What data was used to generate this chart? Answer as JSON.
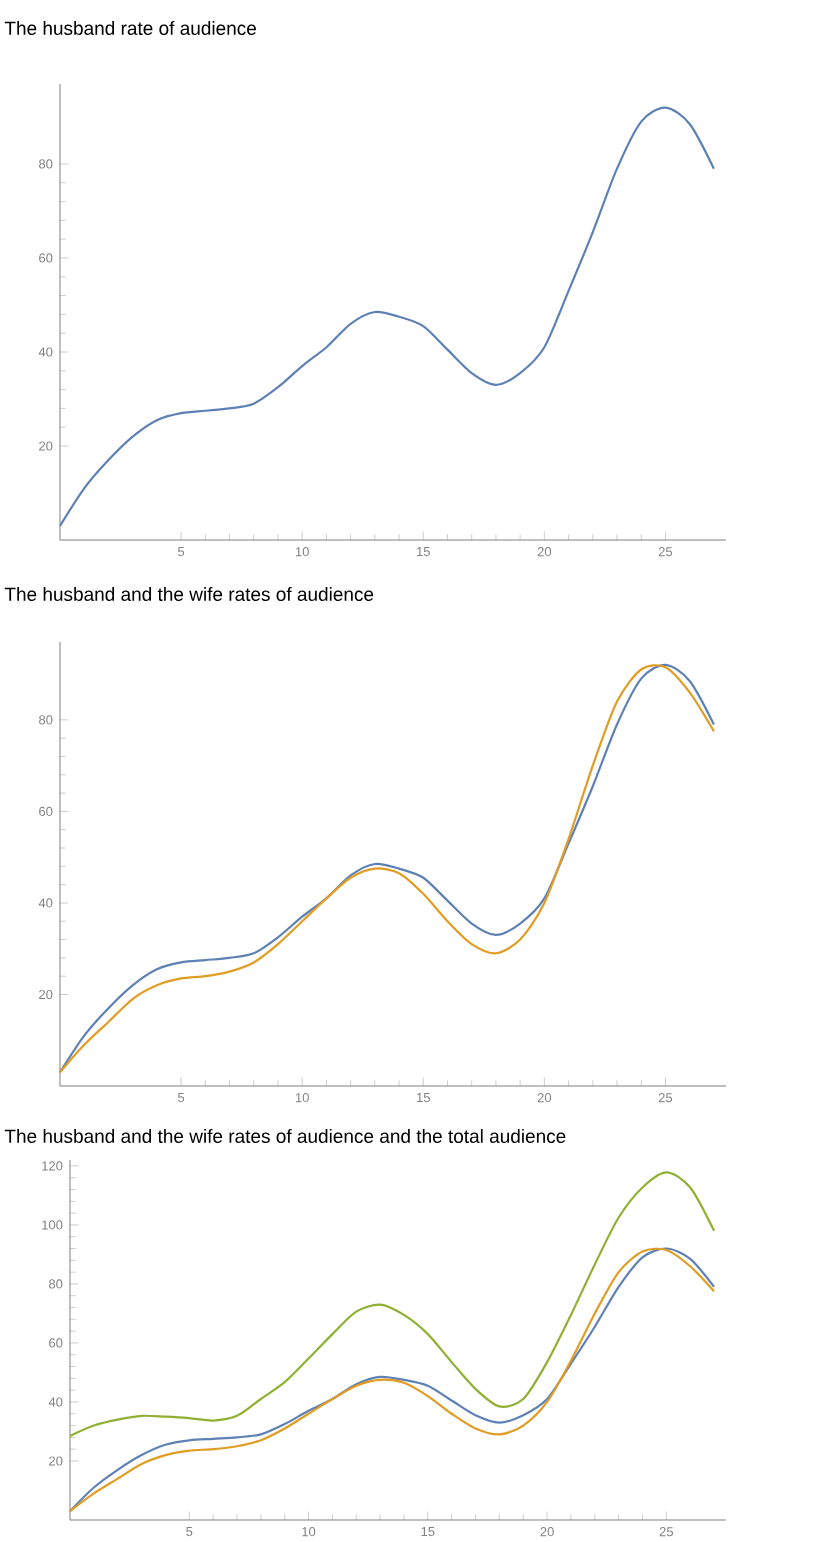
{
  "chart_data": [
    {
      "type": "line",
      "title": "The husband rate of audience",
      "x": [
        0,
        1,
        2,
        3,
        4,
        5,
        6,
        7,
        8,
        9,
        10,
        11,
        12,
        13,
        14,
        15,
        16,
        17,
        18,
        19,
        20,
        21,
        22,
        23,
        24,
        25,
        26,
        27
      ],
      "xlim": [
        0,
        27.5
      ],
      "ylim": [
        0,
        97
      ],
      "xticks": [
        5,
        10,
        15,
        20,
        25
      ],
      "yticks": [
        20,
        40,
        60,
        80
      ],
      "series": [
        {
          "color": "#5e81b5",
          "values": [
            3,
            11,
            17,
            22,
            25.5,
            27,
            27.5,
            28,
            29,
            32.5,
            37,
            41,
            46,
            48.5,
            47.5,
            45.5,
            40.5,
            35.5,
            33,
            35.5,
            41,
            53,
            65.5,
            79,
            89,
            92,
            88.5,
            79
          ]
        }
      ]
    },
    {
      "type": "line",
      "title": "The husband and the wife rates of audience",
      "x": [
        0,
        1,
        2,
        3,
        4,
        5,
        6,
        7,
        8,
        9,
        10,
        11,
        12,
        13,
        14,
        15,
        16,
        17,
        18,
        19,
        20,
        21,
        22,
        23,
        24,
        25,
        26,
        27
      ],
      "xlim": [
        0,
        27.5
      ],
      "ylim": [
        0,
        97
      ],
      "xticks": [
        5,
        10,
        15,
        20,
        25
      ],
      "yticks": [
        20,
        40,
        60,
        80
      ],
      "series": [
        {
          "color": "#5e81b5",
          "values": [
            3,
            11,
            17,
            22,
            25.5,
            27,
            27.5,
            28,
            29,
            32.5,
            37,
            41,
            46,
            48.5,
            47.5,
            45.5,
            40.5,
            35.5,
            33,
            35.5,
            41,
            53,
            65.5,
            79,
            89,
            92,
            88.5,
            79
          ]
        },
        {
          "color": "#e19c24",
          "values": [
            3,
            9,
            14,
            19,
            22,
            23.5,
            24,
            25,
            27,
            31,
            36,
            41,
            45.5,
            47.5,
            46.5,
            42,
            36,
            31,
            29,
            32,
            40,
            54,
            70,
            84,
            91,
            91.5,
            86,
            77.5
          ]
        }
      ]
    },
    {
      "type": "line",
      "title": "The husband and the wife rates of audience and the total audience",
      "x": [
        0,
        1,
        2,
        3,
        4,
        5,
        6,
        7,
        8,
        9,
        10,
        11,
        12,
        13,
        14,
        15,
        16,
        17,
        18,
        19,
        20,
        21,
        22,
        23,
        24,
        25,
        26,
        27
      ],
      "xlim": [
        0,
        27.5
      ],
      "ylim": [
        0,
        122
      ],
      "xticks": [
        5,
        10,
        15,
        20,
        25
      ],
      "yticks": [
        20,
        40,
        60,
        80,
        100,
        120
      ],
      "series": [
        {
          "color": "#5e81b5",
          "values": [
            3,
            11,
            17,
            22,
            25.5,
            27,
            27.5,
            28,
            29,
            32.5,
            37,
            41,
            46,
            48.5,
            47.5,
            45.5,
            40.5,
            35.5,
            33,
            35.5,
            41,
            53,
            65.5,
            79,
            89,
            92,
            88.5,
            79
          ]
        },
        {
          "color": "#e19c24",
          "values": [
            3,
            9,
            14,
            19,
            22,
            23.5,
            24,
            25,
            27,
            31,
            36,
            41,
            45.5,
            47.5,
            46.5,
            42,
            36,
            31,
            29,
            32,
            40,
            54,
            70,
            84,
            91,
            91.5,
            86,
            77.5
          ]
        },
        {
          "color": "#8fb032",
          "values": [
            28.5,
            32,
            34,
            35.3,
            35,
            34.5,
            33.7,
            35.3,
            41,
            46.7,
            54.7,
            63,
            70.6,
            73,
            69.5,
            63,
            53.5,
            44.4,
            38.5,
            41,
            53.5,
            69.5,
            86.6,
            102.5,
            112.7,
            117.8,
            112.7,
            98
          ]
        }
      ]
    }
  ]
}
